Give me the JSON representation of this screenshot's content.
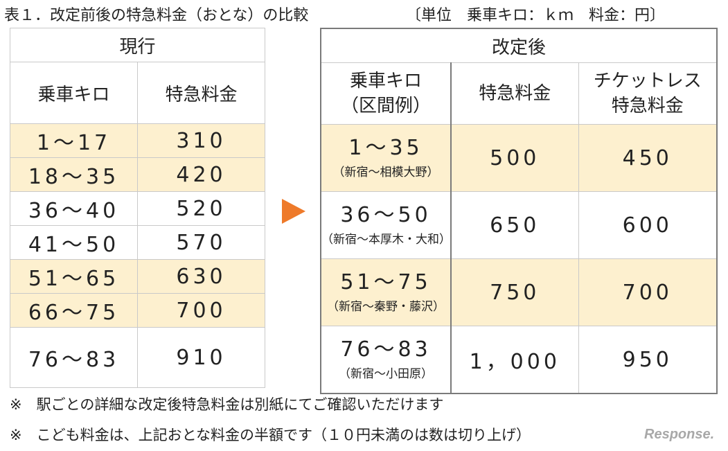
{
  "caption": {
    "title": "表１．改定前後の特急料金（おとな）の比較",
    "unit": "〔単位　乗車キロ：ｋｍ　料金：円〕"
  },
  "current": {
    "header": "現行",
    "col_km": "乗車キロ",
    "col_fee": "特急料金",
    "rows": [
      {
        "km": "1～17",
        "fee": "310"
      },
      {
        "km": "18～35",
        "fee": "420"
      },
      {
        "km": "36～40",
        "fee": "520"
      },
      {
        "km": "41～50",
        "fee": "570"
      },
      {
        "km": "51～65",
        "fee": "630"
      },
      {
        "km": "66～75",
        "fee": "700"
      },
      {
        "km": "76～83",
        "fee": "910"
      }
    ]
  },
  "revised": {
    "header": "改定後",
    "col_km_line1": "乗車キロ",
    "col_km_line2": "（区間例）",
    "col_fee": "特急料金",
    "col_ticketless_line1": "チケットレス",
    "col_ticketless_line2": "特急料金",
    "rows": [
      {
        "km": "1～35",
        "section": "（新宿～相模大野）",
        "fee": "500",
        "ticketless": "450"
      },
      {
        "km": "36～50",
        "section": "（新宿～本厚木・大和）",
        "fee": "650",
        "ticketless": "600"
      },
      {
        "km": "51～75",
        "section": "（新宿～秦野・藤沢）",
        "fee": "750",
        "ticketless": "700"
      },
      {
        "km": "76～83",
        "section": "（新宿～小田原）",
        "fee": "1，000",
        "ticketless": "950"
      }
    ]
  },
  "notes": [
    "※　駅ごとの詳細な改定後特急料金は別紙にてご確認いただけます",
    "※　こども料金は、上記おとな料金の半額です（１０円未満のは数は切り上げ）"
  ],
  "watermark": "Response."
}
